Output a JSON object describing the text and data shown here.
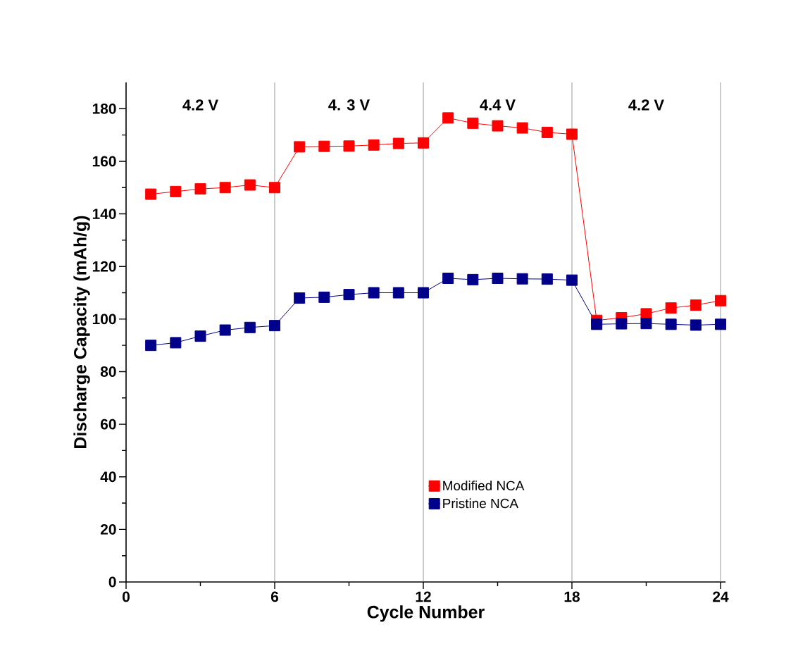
{
  "chart_data": {
    "type": "line",
    "xlabel": "Cycle Number",
    "ylabel": "Discharge Capacity (mAh/g)",
    "x": [
      1,
      2,
      3,
      4,
      5,
      6,
      7,
      8,
      9,
      10,
      11,
      12,
      13,
      14,
      15,
      16,
      17,
      18,
      19,
      20,
      21,
      22,
      23,
      24
    ],
    "series": [
      {
        "name": "Modified NCA",
        "color": "#ff0000",
        "values": [
          147.5,
          148.5,
          149.5,
          150,
          151,
          150,
          165.5,
          165.7,
          165.8,
          166.2,
          166.8,
          167,
          176.5,
          174.5,
          173.5,
          172.7,
          171,
          170.3,
          99.5,
          100.5,
          102,
          104.2,
          105.3,
          107
        ]
      },
      {
        "name": "Pristine NCA",
        "color": "#00008b",
        "values": [
          90,
          91,
          93.5,
          95.8,
          96.8,
          97.5,
          108,
          108.3,
          109.3,
          110,
          110,
          110,
          115.5,
          115,
          115.5,
          115.3,
          115.2,
          114.8,
          98,
          98.2,
          98.3,
          98,
          97.7,
          98
        ]
      }
    ],
    "xlim": [
      0,
      24.2
    ],
    "ylim": [
      0,
      190
    ],
    "xticks": [
      0,
      6,
      12,
      18,
      24
    ],
    "yticks": [
      0,
      20,
      40,
      60,
      80,
      100,
      120,
      140,
      160,
      180
    ],
    "ref_lines": [
      {
        "axis": "x",
        "value": 6,
        "color": "#808080"
      },
      {
        "axis": "x",
        "value": 12,
        "color": "#808080"
      },
      {
        "axis": "x",
        "value": 18,
        "color": "#808080"
      },
      {
        "axis": "x",
        "value": 24,
        "color": "#808080"
      }
    ],
    "annotations": [
      "4.2 V",
      "4. 3 V",
      "4.4 V",
      "4.2 V"
    ],
    "legend": "bottom right",
    "marker": "square",
    "line_style": "solid",
    "grid": false
  }
}
